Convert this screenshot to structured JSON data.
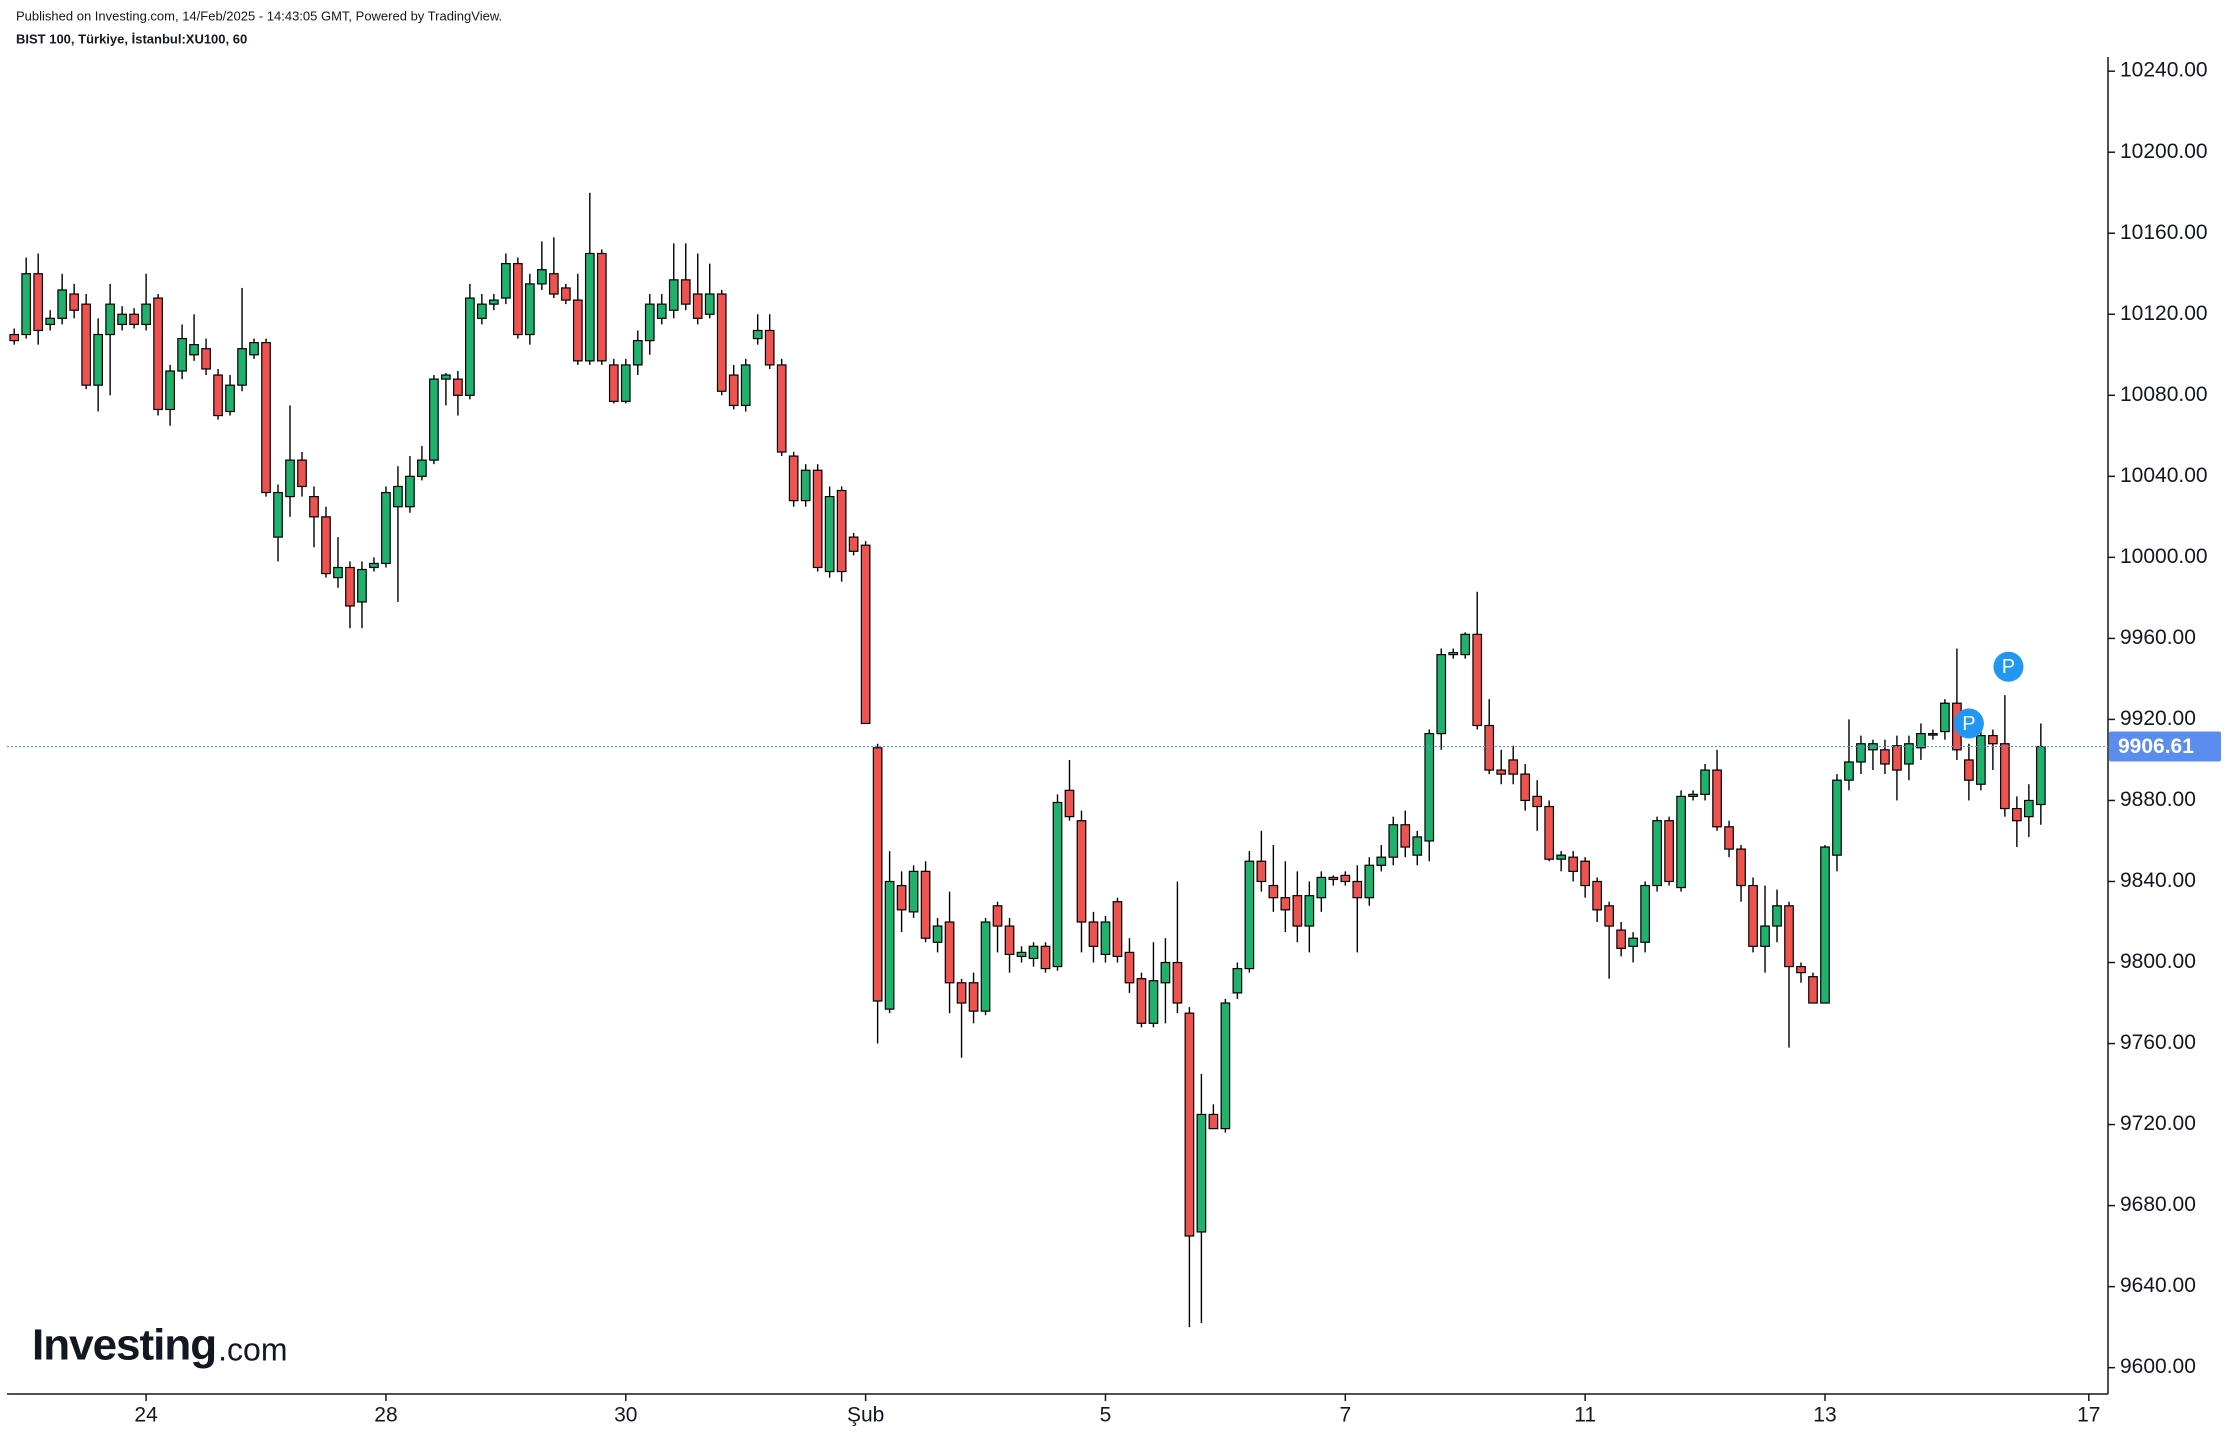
{
  "header": {
    "published": "Published on Investing.com, 14/Feb/2025 - 14:43:05 GMT, Powered by TradingView.",
    "symbol": "BIST 100, Türkiye, İstanbul:XU100, 60"
  },
  "logo": {
    "brand": "Investing",
    "suffix": ".com"
  },
  "chart_data": {
    "type": "candlestick",
    "up_color": "#20b26c",
    "down_color": "#ef5350",
    "outline_color": "#000000",
    "last_line_color": "#5b8def",
    "xlim": [
      -0.6,
      174.6
    ],
    "ylim": [
      9587,
      10247
    ],
    "xticks": [
      {
        "value": 11,
        "label": "24"
      },
      {
        "value": 31,
        "label": "28"
      },
      {
        "value": 51,
        "label": "30"
      },
      {
        "value": 71,
        "label": "Şub"
      },
      {
        "value": 91,
        "label": "5"
      },
      {
        "value": 111,
        "label": "7"
      },
      {
        "value": 131,
        "label": "11"
      },
      {
        "value": 151,
        "label": "13"
      },
      {
        "value": 173,
        "label": "17"
      }
    ],
    "yticks": [
      {
        "value": 9600,
        "label": "9600.00"
      },
      {
        "value": 9640,
        "label": "9640.00"
      },
      {
        "value": 9680,
        "label": "9680.00"
      },
      {
        "value": 9720,
        "label": "9720.00"
      },
      {
        "value": 9760,
        "label": "9760.00"
      },
      {
        "value": 9800,
        "label": "9800.00"
      },
      {
        "value": 9840,
        "label": "9840.00"
      },
      {
        "value": 9880,
        "label": "9880.00"
      },
      {
        "value": 9920,
        "label": "9920.00"
      },
      {
        "value": 9960,
        "label": "9960.00"
      },
      {
        "value": 10000,
        "label": "10000.00"
      },
      {
        "value": 10040,
        "label": "10040.00"
      },
      {
        "value": 10080,
        "label": "10080.00"
      },
      {
        "value": 10120,
        "label": "10120.00"
      },
      {
        "value": 10160,
        "label": "10160.00"
      },
      {
        "value": 10200,
        "label": "10200.00"
      },
      {
        "value": 10240,
        "label": "10240.00"
      }
    ],
    "markers": [
      {
        "label": "P",
        "x": 163,
        "y": 9918
      },
      {
        "label": "P",
        "x": 166.3,
        "y": 9946
      }
    ],
    "open": [
      10110,
      10110,
      10140,
      10115,
      10118,
      10130,
      10125,
      10085,
      10110,
      10115,
      10120,
      10115,
      10128,
      10073,
      10092,
      10100,
      10103,
      10090,
      10072,
      10085,
      10100,
      10106,
      10010,
      10030,
      10048,
      10030,
      10020,
      9990,
      9995,
      9978,
      9995,
      9997,
      10025,
      10025,
      10040,
      10048,
      10088,
      10088,
      10080,
      10118,
      10125,
      10128,
      10145,
      10110,
      10135,
      10140,
      10133,
      10127,
      10097,
      10150,
      10095,
      10077,
      10095,
      10107,
      10118,
      10122,
      10137,
      10130,
      10120,
      10130,
      10090,
      10075,
      10108,
      10112,
      10095,
      10050,
      10028,
      10043,
      9993,
      10033,
      10010,
      10006,
      9906,
      9777,
      9838,
      9825,
      9845,
      9810,
      9820,
      9790,
      9790,
      9776,
      9828,
      9818,
      9803,
      9802,
      9808,
      9798,
      9885,
      9870,
      9820,
      9804,
      9830,
      9805,
      9792,
      9770,
      9790,
      9800,
      9775,
      9667,
      9725,
      9718,
      9785,
      9797,
      9850,
      9838,
      9832,
      9833,
      9818,
      9832,
      9842,
      9843,
      9840,
      9832,
      9848,
      9852,
      9868,
      9853,
      9860,
      9913,
      9952,
      9952,
      9962,
      9917,
      9895,
      9900,
      9893,
      9882,
      9877,
      9851,
      9852,
      9850,
      9840,
      9828,
      9816,
      9808,
      9810,
      9838,
      9870,
      9837,
      9882,
      9883,
      9895,
      9867,
      9856,
      9838,
      9808,
      9818,
      9828,
      9798,
      9793,
      9780,
      9853,
      9890,
      9899,
      9905,
      9905,
      9907,
      9898,
      9906,
      9913,
      9914,
      9928,
      9900,
      9888,
      9912,
      9908,
      9876,
      9872,
      9878
    ],
    "high": [
      10113,
      10148,
      10150,
      10122,
      10140,
      10135,
      10130,
      10118,
      10135,
      10124,
      10123,
      10140,
      10130,
      10095,
      10115,
      10120,
      10108,
      10093,
      10090,
      10133,
      10108,
      10108,
      10036,
      10075,
      10052,
      10035,
      10025,
      10010,
      9998,
      9998,
      10000,
      10035,
      10045,
      10050,
      10055,
      10090,
      10091,
      10092,
      10135,
      10130,
      10130,
      10150,
      10148,
      10140,
      10156,
      10158,
      10135,
      10140,
      10180,
      10152,
      10098,
      10098,
      10112,
      10130,
      10130,
      10155,
      10155,
      10150,
      10145,
      10132,
      10095,
      10098,
      10120,
      10120,
      10098,
      10052,
      10046,
      10046,
      10035,
      10035,
      10012,
      10008,
      9908,
      9855,
      9845,
      9848,
      9850,
      9822,
      9835,
      9792,
      9795,
      9822,
      9830,
      9822,
      9808,
      9810,
      9810,
      9883,
      9900,
      9875,
      9825,
      9823,
      9832,
      9812,
      9795,
      9810,
      9812,
      9840,
      9778,
      9745,
      9730,
      9782,
      9800,
      9855,
      9865,
      9858,
      9850,
      9845,
      9840,
      9845,
      9843,
      9845,
      9848,
      9852,
      9858,
      9872,
      9875,
      9865,
      9915,
      9955,
      9955,
      9963,
      9983,
      9930,
      9905,
      9907,
      9898,
      9890,
      9880,
      9855,
      9855,
      9852,
      9842,
      9830,
      9820,
      9815,
      9840,
      9872,
      9872,
      9885,
      9885,
      9898,
      9905,
      9870,
      9858,
      9842,
      9838,
      9836,
      9830,
      9800,
      9795,
      9858,
      9893,
      9920,
      9912,
      9910,
      9910,
      9912,
      9912,
      9918,
      9915,
      9930,
      9955,
      9908,
      9915,
      9915,
      9932,
      9882,
      9888,
      9918
    ],
    "low": [
      10105,
      10108,
      10105,
      10112,
      10115,
      10118,
      10083,
      10072,
      10080,
      10112,
      10113,
      10112,
      10070,
      10065,
      10088,
      10097,
      10090,
      10068,
      10070,
      10082,
      10098,
      10030,
      9998,
      10020,
      10030,
      10005,
      9990,
      9985,
      9965,
      9965,
      9993,
      9995,
      9978,
      10022,
      10038,
      10046,
      10075,
      10070,
      10078,
      10115,
      10122,
      10125,
      10108,
      10105,
      10132,
      10128,
      10125,
      10095,
      10095,
      10095,
      10076,
      10076,
      10090,
      10100,
      10115,
      10118,
      10122,
      10115,
      10118,
      10080,
      10073,
      10072,
      10105,
      10093,
      10050,
      10025,
      10025,
      9993,
      9990,
      9988,
      10001,
      9918,
      9760,
      9775,
      9815,
      9822,
      9810,
      9805,
      9775,
      9753,
      9770,
      9774,
      9805,
      9795,
      9800,
      9798,
      9795,
      9796,
      9870,
      9805,
      9800,
      9800,
      9800,
      9785,
      9768,
      9768,
      9770,
      9775,
      9620,
      9622,
      9718,
      9716,
      9782,
      9795,
      9835,
      9825,
      9815,
      9810,
      9805,
      9825,
      9838,
      9838,
      9805,
      9828,
      9845,
      9848,
      9852,
      9848,
      9850,
      9905,
      9950,
      9950,
      9915,
      9893,
      9888,
      9888,
      9875,
      9865,
      9850,
      9845,
      9840,
      9832,
      9820,
      9792,
      9803,
      9800,
      9805,
      9835,
      9838,
      9835,
      9880,
      9880,
      9865,
      9852,
      9830,
      9805,
      9795,
      9810,
      9758,
      9790,
      9780,
      9780,
      9845,
      9885,
      9893,
      9895,
      9893,
      9880,
      9890,
      9900,
      9910,
      9910,
      9900,
      9880,
      9885,
      9895,
      9872,
      9857,
      9862,
      9868
    ],
    "close": [
      10107,
      10140,
      10112,
      10118,
      10132,
      10122,
      10085,
      10110,
      10125,
      10120,
      10115,
      10125,
      10073,
      10092,
      10108,
      10105,
      10093,
      10070,
      10085,
      10103,
      10106,
      10032,
      10032,
      10048,
      10035,
      10020,
      9992,
      9995,
      9976,
      9994,
      9997,
      10032,
      10035,
      10040,
      10048,
      10088,
      10090,
      10080,
      10128,
      10125,
      10127,
      10145,
      10110,
      10135,
      10142,
      10130,
      10127,
      10097,
      10150,
      10097,
      10077,
      10095,
      10107,
      10125,
      10125,
      10137,
      10125,
      10118,
      10130,
      10082,
      10075,
      10095,
      10112,
      10095,
      10052,
      10028,
      10043,
      9995,
      10030,
      9993,
      10003,
      9918,
      9781,
      9840,
      9826,
      9845,
      9812,
      9818,
      9790,
      9780,
      9776,
      9820,
      9818,
      9804,
      9805,
      9808,
      9797,
      9879,
      9872,
      9820,
      9808,
      9820,
      9803,
      9790,
      9770,
      9791,
      9800,
      9780,
      9665,
      9725,
      9718,
      9780,
      9797,
      9850,
      9840,
      9832,
      9826,
      9818,
      9833,
      9842,
      9841,
      9840,
      9832,
      9848,
      9852,
      9868,
      9857,
      9862,
      9913,
      9952,
      9953,
      9962,
      9917,
      9895,
      9893,
      9893,
      9880,
      9877,
      9851,
      9853,
      9845,
      9838,
      9826,
      9818,
      9807,
      9812,
      9838,
      9870,
      9840,
      9882,
      9883,
      9895,
      9867,
      9856,
      9838,
      9808,
      9818,
      9828,
      9798,
      9795,
      9780,
      9857,
      9890,
      9899,
      9908,
      9908,
      9898,
      9895,
      9908,
      9913,
      9913,
      9928,
      9905,
      9890,
      9912,
      9908,
      9876,
      9870,
      9880,
      9906.61
    ]
  }
}
